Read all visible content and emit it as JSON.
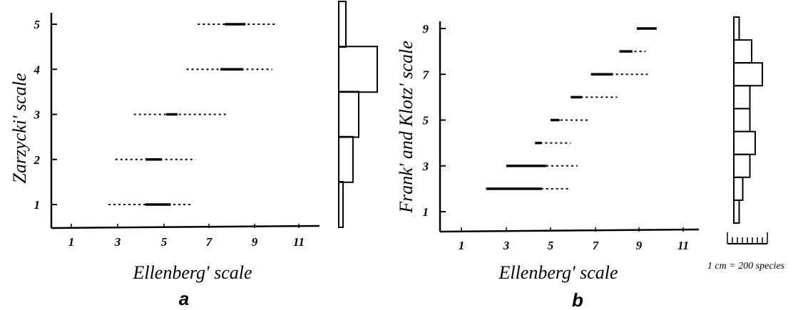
{
  "figure": {
    "scale_note": "1 cm = 200 species"
  },
  "chart_data": [
    {
      "type": "range",
      "panel": "a",
      "xlabel": "Ellenberg' scale",
      "ylabel": "Zarzycki' scale",
      "xticks": [
        1,
        3,
        5,
        7,
        9,
        11
      ],
      "yticks": [
        1,
        2,
        3,
        4,
        5
      ],
      "xlim": [
        0,
        12
      ],
      "ylim": [
        0.5,
        5.4
      ],
      "ranges": [
        {
          "y": 1,
          "solid": [
            4.2,
            5.3
          ],
          "dotted": [
            2.6,
            6.2
          ]
        },
        {
          "y": 2,
          "solid": [
            4.2,
            4.9
          ],
          "dotted": [
            2.9,
            6.4
          ]
        },
        {
          "y": 3,
          "solid": [
            5.1,
            5.6
          ],
          "dotted": [
            3.7,
            7.8
          ]
        },
        {
          "y": 4,
          "solid": [
            7.5,
            8.5
          ],
          "dotted": [
            6.0,
            9.8
          ]
        },
        {
          "y": 5,
          "solid": [
            7.7,
            8.6
          ],
          "dotted": [
            6.5,
            10.0
          ]
        }
      ],
      "histogram": [
        {
          "y": 1,
          "count": 0.3
        },
        {
          "y": 2,
          "count": 1.0
        },
        {
          "y": 3,
          "count": 1.4
        },
        {
          "y": 4,
          "count": 2.7
        },
        {
          "y": 5,
          "count": 0.5
        }
      ]
    },
    {
      "type": "range",
      "panel": "b",
      "xlabel": "Ellenberg' scale",
      "ylabel": "Frank' and Klotz' scale",
      "xticks": [
        1,
        3,
        5,
        7,
        9,
        11
      ],
      "yticks": [
        1,
        3,
        5,
        7,
        9
      ],
      "xlim": [
        0,
        12
      ],
      "ylim": [
        0.1,
        9.5
      ],
      "ranges": [
        {
          "y": 2,
          "solid": [
            2.1,
            4.6
          ],
          "dotted": [
            2.1,
            5.9
          ]
        },
        {
          "y": 3,
          "solid": [
            3.0,
            4.8
          ],
          "dotted": [
            3.0,
            6.2
          ]
        },
        {
          "y": 4,
          "solid": [
            4.3,
            4.6
          ],
          "dotted": [
            4.3,
            5.9
          ]
        },
        {
          "y": 5,
          "solid": [
            5.0,
            5.4
          ],
          "dotted": [
            5.0,
            6.7
          ]
        },
        {
          "y": 6,
          "solid": [
            5.9,
            6.4
          ],
          "dotted": [
            5.9,
            8.0
          ]
        },
        {
          "y": 7,
          "solid": [
            6.8,
            7.8
          ],
          "dotted": [
            6.8,
            9.4
          ]
        },
        {
          "y": 8,
          "solid": [
            8.1,
            8.7
          ],
          "dotted": [
            8.1,
            9.3
          ]
        },
        {
          "y": 9,
          "solid": [
            8.9,
            9.8
          ],
          "dotted": [
            8.9,
            9.8
          ]
        }
      ],
      "histogram": [
        {
          "y": 1,
          "count": 0.3
        },
        {
          "y": 2,
          "count": 0.5
        },
        {
          "y": 3,
          "count": 0.9
        },
        {
          "y": 4,
          "count": 1.2
        },
        {
          "y": 5,
          "count": 0.9
        },
        {
          "y": 6,
          "count": 0.9
        },
        {
          "y": 7,
          "count": 1.6
        },
        {
          "y": 8,
          "count": 1.0
        },
        {
          "y": 9,
          "count": 0.3
        }
      ]
    }
  ]
}
